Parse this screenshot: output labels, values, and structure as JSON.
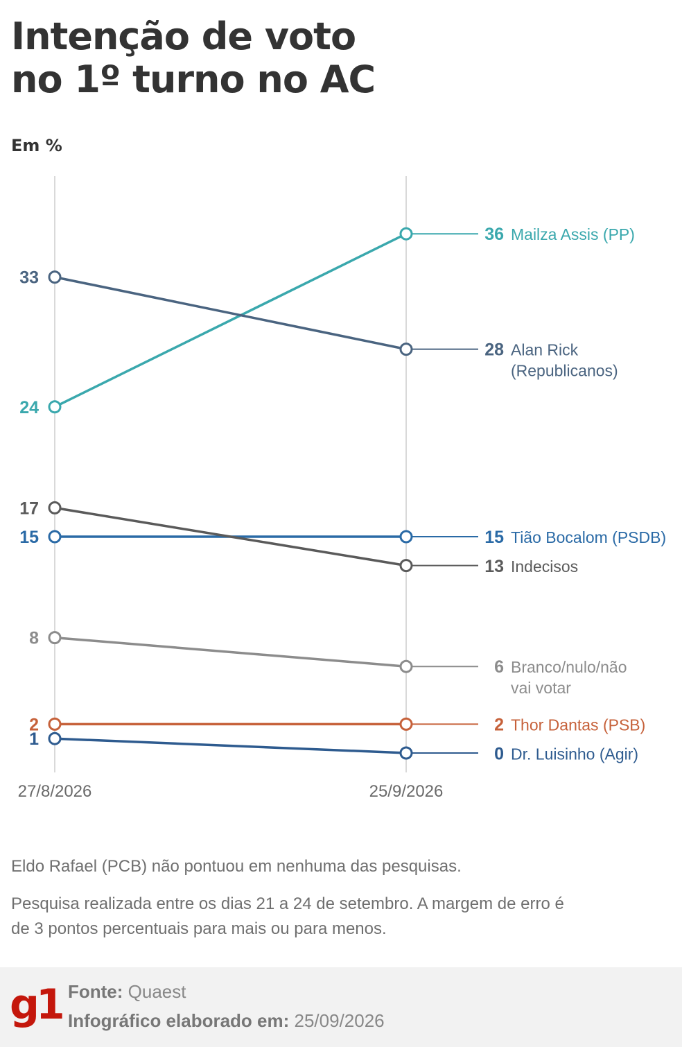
{
  "title_line1": "Intenção de voto",
  "title_line2": "no 1º turno no AC",
  "unit": "Em %",
  "chart_data": {
    "type": "line",
    "title": "Intenção de voto no 1º turno no AC",
    "ylabel": "Em %",
    "x": [
      "27/8/2026",
      "25/9/2026"
    ],
    "series": [
      {
        "name": "Mailza Assis (PP)",
        "label_lines": [
          "Mailza Assis (PP)"
        ],
        "values": [
          24,
          36
        ],
        "color": "#3aa8ad"
      },
      {
        "name": "Alan Rick (Republicanos)",
        "label_lines": [
          "Alan Rick",
          "(Republicanos)"
        ],
        "values": [
          33,
          28
        ],
        "color": "#4a6480"
      },
      {
        "name": "Tião Bocalom (PSDB)",
        "label_lines": [
          "Tião Bocalom (PSDB)"
        ],
        "values": [
          15,
          15
        ],
        "color": "#2a6aa6"
      },
      {
        "name": "Indecisos",
        "label_lines": [
          "Indecisos"
        ],
        "values": [
          17,
          13
        ],
        "color": "#5a5a5a"
      },
      {
        "name": "Branco/nulo/não vai votar",
        "label_lines": [
          "Branco/nulo/não",
          "vai votar"
        ],
        "values": [
          8,
          6
        ],
        "color": "#8c8c8c"
      },
      {
        "name": "Thor Dantas (PSB)",
        "label_lines": [
          "Thor Dantas (PSB)"
        ],
        "values": [
          2,
          2
        ],
        "color": "#c6613a"
      },
      {
        "name": "Dr. Luisinho (Agir)",
        "label_lines": [
          "Dr. Luisinho (Agir)"
        ],
        "values": [
          1,
          0
        ],
        "color": "#2e5b8f"
      }
    ],
    "ylim": [
      0,
      40
    ],
    "grid": false
  },
  "notes": {
    "note1": "Eldo Rafael (PCB) não pontuou em nenhuma das pesquisas.",
    "note2": "Pesquisa realizada entre os dias 21 a 24 de setembro. A margem de erro é de 3 pontos percentuais para mais ou para menos."
  },
  "footer": {
    "logo": "g1",
    "source_label": "Fonte:",
    "source_value": "Quaest",
    "made_label": "Infográfico elaborado em:",
    "made_value": "25/09/2026"
  },
  "colors": {
    "title": "#333333",
    "axis_line": "#d9d9d9",
    "muted_text": "#6f6f6f",
    "footer_bg": "#f2f2f2",
    "brand": "#c4170c"
  }
}
